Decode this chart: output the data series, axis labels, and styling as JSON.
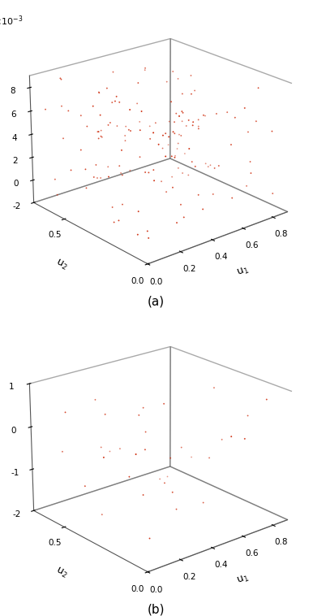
{
  "seed_a": 42,
  "n_points_a": 150,
  "seed_b": 7,
  "n_points_b": 35,
  "dot_color": "#cc2200",
  "dot_size": 3,
  "xlabel": "u$_1$",
  "ylabel": "u$_2$",
  "label_a": "(a)",
  "label_b": "(b)",
  "u1_lim": [
    0,
    0.9
  ],
  "u2_lim": [
    0,
    0.7
  ],
  "za_lim": [
    -0.002,
    0.009
  ],
  "zb_lim": [
    -0.002,
    0.001
  ],
  "u1_ticks": [
    0,
    0.2,
    0.4,
    0.6,
    0.8
  ],
  "u2_ticks": [
    0,
    0.5
  ],
  "za_ticks": [
    -0.002,
    0.0,
    0.002,
    0.004,
    0.006,
    0.008
  ],
  "zb_ticks": [
    -0.002,
    -0.001,
    0.0,
    0.001
  ],
  "za_tick_labels": [
    "-2",
    "0",
    "2",
    "4",
    "6",
    "8"
  ],
  "zb_tick_labels": [
    "-2",
    "-1",
    "0",
    "1"
  ],
  "figsize": [
    3.81,
    7.58
  ],
  "dpi": 100,
  "elev": 22,
  "azim": -130,
  "background_color": "#ffffff",
  "pane_color": "#eeeeee",
  "edge_color": "#555555"
}
